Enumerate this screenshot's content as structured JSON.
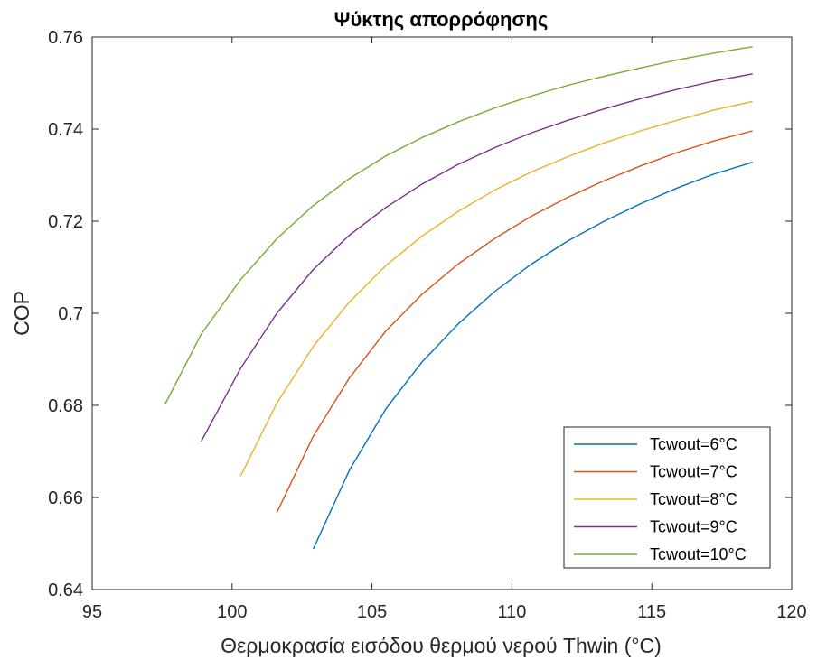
{
  "chart_data": {
    "type": "line",
    "title": "Ψύκτης απορρόφησης",
    "xlabel": "Θερμοκρασία εισόδου θερμού νερού Thwin (°C)",
    "ylabel": "COP",
    "xlim": [
      95,
      120
    ],
    "ylim": [
      0.64,
      0.76
    ],
    "xticks": [
      95,
      100,
      105,
      110,
      115,
      120
    ],
    "yticks": [
      0.64,
      0.66,
      0.68,
      0.7,
      0.72,
      0.74,
      0.76
    ],
    "xtick_labels": [
      "95",
      "100",
      "105",
      "110",
      "115",
      "120"
    ],
    "ytick_labels": [
      "0.64",
      "0.66",
      "0.68",
      "0.7",
      "0.72",
      "0.74",
      "0.76"
    ],
    "grid": false,
    "legend_position": "bottom-right",
    "series": [
      {
        "name": "Tcwout=6°C",
        "color": "#0072BD",
        "x": [
          102.9,
          104.2,
          105.5,
          106.8,
          108.1,
          109.4,
          110.7,
          112.0,
          113.3,
          114.6,
          115.9,
          117.2,
          118.6
        ],
        "y": [
          0.6488,
          0.666,
          0.6793,
          0.6895,
          0.6978,
          0.7048,
          0.7107,
          0.7157,
          0.72,
          0.7238,
          0.7272,
          0.7302,
          0.7328
        ]
      },
      {
        "name": "Tcwout=7°C",
        "color": "#D95319",
        "x": [
          101.6,
          102.9,
          104.2,
          105.5,
          106.8,
          108.1,
          109.4,
          110.7,
          112.0,
          113.3,
          114.6,
          115.9,
          117.2,
          118.6
        ],
        "y": [
          0.6567,
          0.6733,
          0.686,
          0.6962,
          0.7042,
          0.7108,
          0.7163,
          0.7211,
          0.7252,
          0.7288,
          0.732,
          0.7349,
          0.7374,
          0.7396
        ]
      },
      {
        "name": "Tcwout=8°C",
        "color": "#EDB120",
        "x": [
          100.3,
          101.6,
          102.9,
          104.2,
          105.5,
          106.8,
          108.1,
          109.4,
          110.7,
          112.0,
          113.3,
          114.6,
          115.9,
          117.2,
          118.6
        ],
        "y": [
          0.6646,
          0.6805,
          0.6928,
          0.7025,
          0.7104,
          0.7168,
          0.7222,
          0.7268,
          0.7307,
          0.734,
          0.737,
          0.7396,
          0.7419,
          0.7441,
          0.746
        ]
      },
      {
        "name": "Tcwout=9°C",
        "color": "#7E2F8E",
        "x": [
          98.9,
          100.3,
          101.6,
          102.9,
          104.2,
          105.5,
          106.8,
          108.1,
          109.4,
          110.7,
          112.0,
          113.3,
          114.6,
          115.9,
          117.2,
          118.6
        ],
        "y": [
          0.6722,
          0.688,
          0.7,
          0.7095,
          0.717,
          0.723,
          0.7281,
          0.7324,
          0.736,
          0.7392,
          0.7419,
          0.7444,
          0.7466,
          0.7486,
          0.7504,
          0.752
        ]
      },
      {
        "name": "Tcwout=10°C",
        "color": "#77AC30",
        "x": [
          97.6,
          98.9,
          100.3,
          101.6,
          102.9,
          104.2,
          105.5,
          106.8,
          108.1,
          109.4,
          110.7,
          112.0,
          113.3,
          114.6,
          115.9,
          117.2,
          118.6
        ],
        "y": [
          0.6802,
          0.6955,
          0.7073,
          0.7162,
          0.7234,
          0.7293,
          0.7342,
          0.7382,
          0.7416,
          0.7446,
          0.7472,
          0.7495,
          0.7515,
          0.7533,
          0.755,
          0.7565,
          0.7579
        ]
      }
    ]
  }
}
